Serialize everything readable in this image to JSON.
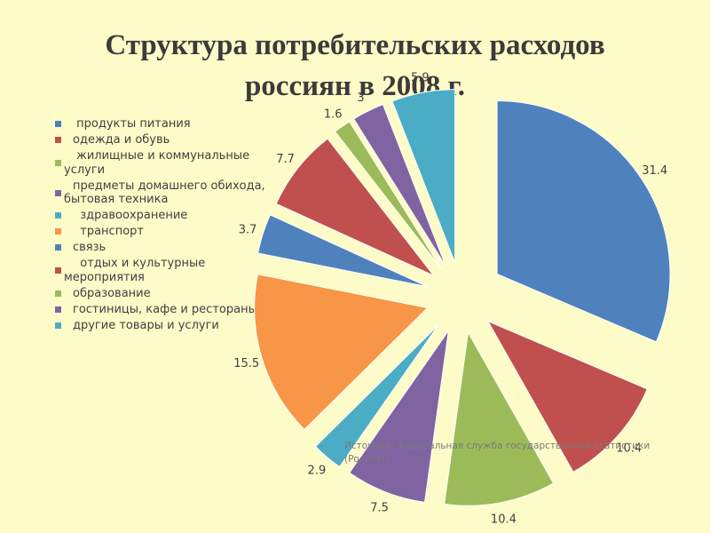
{
  "title_line1": "Структура потребительских расходов",
  "title_line2": "россиян в 2008 г.",
  "source_line1": "Источник: Федеральная служба государственной статистики",
  "source_line2": "(Росстат)",
  "chart_data": {
    "type": "pie",
    "exploded": true,
    "legend_position": "left",
    "series": [
      {
        "name": "продукты питания",
        "value": 31.4,
        "color": "#4f81bd",
        "label": "31.4"
      },
      {
        "name": "одежда и обувь",
        "value": 10.4,
        "color": "#c0504d",
        "label": "10.4"
      },
      {
        "name": "жилищные и коммунальные услуги",
        "value": 10.4,
        "color": "#9bbb59",
        "label": "10.4"
      },
      {
        "name": "предметы домашнего обихода, бытовая техника",
        "value": 7.5,
        "color": "#8064a2",
        "label": "7.5"
      },
      {
        "name": "здравоохранение",
        "value": 2.9,
        "color": "#4bacc6",
        "label": "2.9"
      },
      {
        "name": "транспорт",
        "value": 15.5,
        "color": "#f79646",
        "label": "15.5"
      },
      {
        "name": "связь",
        "value": 3.7,
        "color": "#4f81bd",
        "label": "3.7"
      },
      {
        "name": "отдых и культурные мероприятия",
        "value": 7.7,
        "color": "#c0504d",
        "label": "7.7"
      },
      {
        "name": "образование",
        "value": 1.6,
        "color": "#9bbb59",
        "label": "1.6"
      },
      {
        "name": "гостиницы, кафе и рестораны",
        "value": 3.0,
        "color": "#8064a2",
        "label": "3"
      },
      {
        "name": "другие товары и услуги",
        "value": 5.9,
        "color": "#4bacc6",
        "label": "5.9"
      }
    ]
  },
  "legend_items": [
    {
      "line1": " продукты питания",
      "line2": "",
      "color": "#4f81bd"
    },
    {
      "line1": "одежда и обувь",
      "line2": "",
      "color": "#c0504d"
    },
    {
      "line1": " жилищные и коммунальные",
      "line2": "услуги",
      "color": "#9bbb59"
    },
    {
      "line1": "предметы домашнего обихода,",
      "line2": "бытовая техника",
      "color": "#8064a2"
    },
    {
      "line1": "  здравоохранение",
      "line2": "",
      "color": "#4bacc6"
    },
    {
      "line1": "  транспорт",
      "line2": "",
      "color": "#f79646"
    },
    {
      "line1": "связь",
      "line2": "",
      "color": "#4f81bd"
    },
    {
      "line1": "  отдых и культурные",
      "line2": "мероприятия",
      "color": "#c0504d"
    },
    {
      "line1": "образование",
      "line2": "",
      "color": "#9bbb59"
    },
    {
      "line1": "гостиницы, кафе и рестораны",
      "line2": "",
      "color": "#8064a2"
    },
    {
      "line1": "другие товары и услуги",
      "line2": "",
      "color": "#4bacc6"
    }
  ]
}
